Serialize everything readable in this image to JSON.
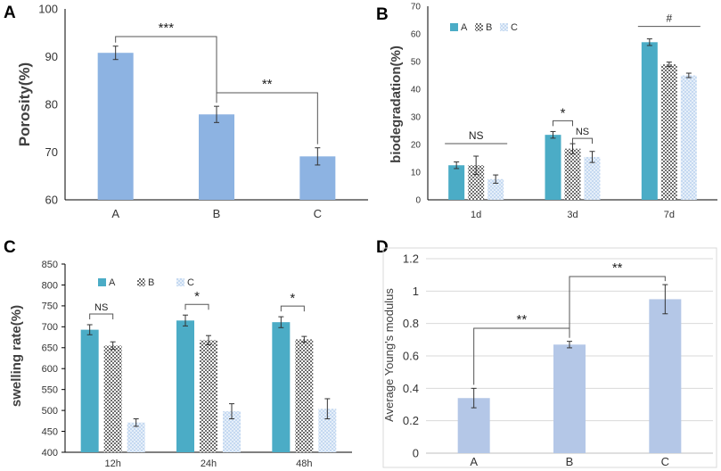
{
  "colors": {
    "porosity_bar": "#8DB3E2",
    "modulus_bar": "#B4C7E7",
    "teal": "#4BACC6",
    "checker_dark": "#6E6E6E",
    "dots_fill": "#C5D9F1",
    "axis": "#000000",
    "gridline": "#D9D9D9",
    "text": "#333333"
  },
  "chart_data": [
    {
      "panel": "A",
      "type": "bar",
      "ylabel": "Porosity(%)",
      "categories": [
        "A",
        "B",
        "C"
      ],
      "values": [
        90.8,
        77.9,
        69.1
      ],
      "errors": [
        1.4,
        1.7,
        1.8
      ],
      "ylim": [
        60,
        100
      ],
      "yticks": [
        60,
        70,
        80,
        90,
        100
      ],
      "ytick_labels": [
        "60",
        "70",
        "80",
        "90",
        "100"
      ],
      "grid": false,
      "significance": [
        {
          "from": 0,
          "to": 1,
          "label": "***"
        },
        {
          "from": 1,
          "to": 2,
          "label": "**"
        }
      ]
    },
    {
      "panel": "B",
      "type": "bar",
      "ylabel": "biodegradation(%)",
      "categories": [
        "1d",
        "3d",
        "7d"
      ],
      "series": [
        {
          "name": "A",
          "values": [
            12.5,
            23.5,
            57.0
          ],
          "errors": [
            1.2,
            1.2,
            1.2
          ]
        },
        {
          "name": "B",
          "values": [
            12.5,
            18.5,
            49.0
          ],
          "errors": [
            3.3,
            1.8,
            0.8
          ]
        },
        {
          "name": "C",
          "values": [
            7.5,
            15.5,
            45.0
          ],
          "errors": [
            1.5,
            2.0,
            0.8
          ]
        }
      ],
      "ylim": [
        0,
        70
      ],
      "yticks": [
        0,
        10,
        20,
        30,
        40,
        50,
        60,
        70
      ],
      "ytick_labels": [
        "0",
        "10",
        "20",
        "30",
        "40",
        "50",
        "60",
        "70"
      ],
      "grid": false,
      "legend_position": "top-left",
      "significance": [
        {
          "group": 0,
          "from": 0,
          "to": 2,
          "label": "NS"
        },
        {
          "group": 1,
          "from": 0,
          "to": 1,
          "label": "*"
        },
        {
          "group": 1,
          "from": 1,
          "to": 2,
          "label": "NS"
        },
        {
          "group": 2,
          "from": 0,
          "to": 2,
          "label": "#"
        }
      ]
    },
    {
      "panel": "C",
      "type": "bar",
      "ylabel": "swelling rate(%)",
      "categories": [
        "12h",
        "24h",
        "48h"
      ],
      "series": [
        {
          "name": "A",
          "values": [
            693,
            715,
            711
          ],
          "errors": [
            12,
            13,
            13
          ]
        },
        {
          "name": "B",
          "values": [
            655,
            668,
            670
          ],
          "errors": [
            9,
            11,
            7
          ]
        },
        {
          "name": "C",
          "values": [
            471,
            498,
            504
          ],
          "errors": [
            9,
            18,
            24
          ]
        }
      ],
      "ylim": [
        400,
        850
      ],
      "yticks": [
        400,
        450,
        500,
        550,
        600,
        650,
        700,
        750,
        800,
        850
      ],
      "ytick_labels": [
        "400",
        "450",
        "500",
        "550",
        "600",
        "650",
        "700",
        "750",
        "800",
        "850"
      ],
      "grid": false,
      "legend_position": "top-left",
      "significance": [
        {
          "group": 0,
          "from": 0,
          "to": 1,
          "label": "NS"
        },
        {
          "group": 1,
          "from": 0,
          "to": 1,
          "label": "*"
        },
        {
          "group": 2,
          "from": 0,
          "to": 1,
          "label": "*"
        }
      ]
    },
    {
      "panel": "D",
      "type": "bar",
      "ylabel": "Average Young's modulus",
      "categories": [
        "A",
        "B",
        "C"
      ],
      "values": [
        0.34,
        0.67,
        0.95
      ],
      "errors": [
        0.06,
        0.02,
        0.09
      ],
      "ylim": [
        0,
        1.2
      ],
      "yticks": [
        0,
        0.2,
        0.4,
        0.6,
        0.8,
        1.0,
        1.2
      ],
      "ytick_labels": [
        "0",
        "0.2",
        "0.4",
        "0.6",
        "0.8",
        "1",
        "1.2"
      ],
      "grid": true,
      "significance": [
        {
          "from": 0,
          "to": 1,
          "label": "**"
        },
        {
          "from": 1,
          "to": 2,
          "label": "**"
        }
      ]
    }
  ]
}
